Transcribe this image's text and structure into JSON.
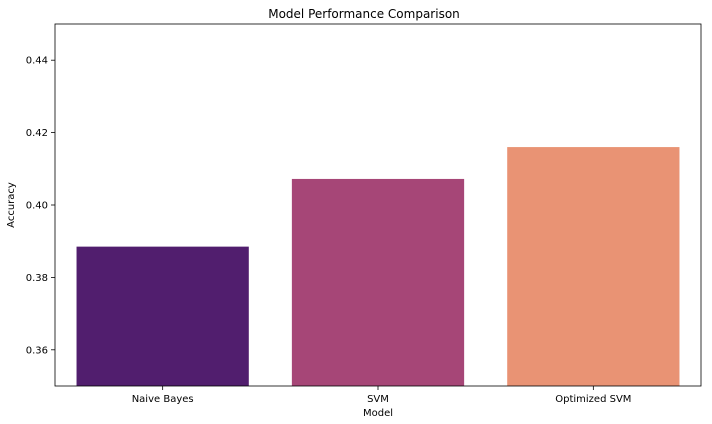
{
  "chart_data": {
    "type": "bar",
    "title": "Model Performance Comparison",
    "xlabel": "Model",
    "ylabel": "Accuracy",
    "categories": [
      "Naive Bayes",
      "SVM",
      "Optimized SVM"
    ],
    "values": [
      0.3885,
      0.4072,
      0.416
    ],
    "colors": [
      "#511e6e",
      "#a64677",
      "#e99374"
    ],
    "ylim": [
      0.35,
      0.45
    ],
    "yticks": [
      0.36,
      0.38,
      0.4,
      0.42,
      0.44
    ],
    "ytick_labels": [
      "0.36",
      "0.38",
      "0.40",
      "0.42",
      "0.44"
    ],
    "grid": false,
    "legend": "none"
  }
}
